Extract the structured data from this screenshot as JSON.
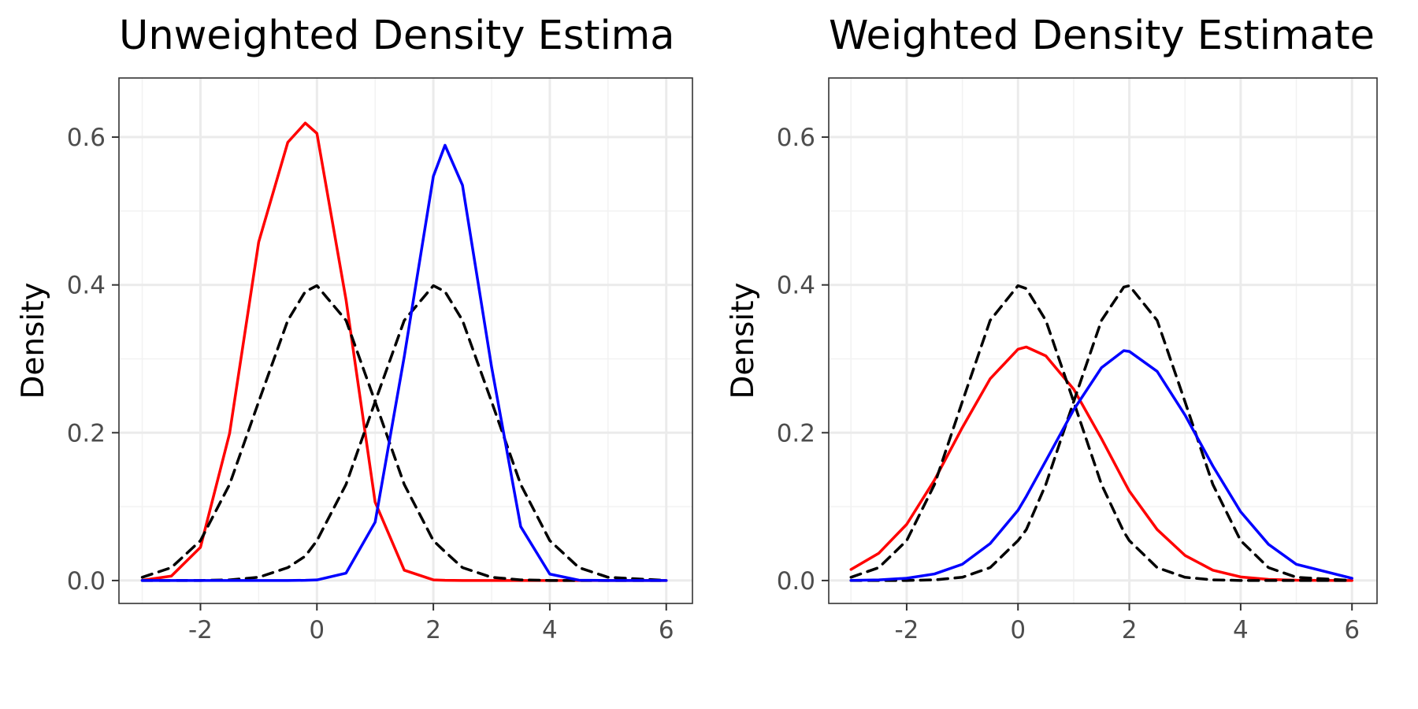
{
  "chart_data": [
    {
      "type": "line",
      "title": "Unweighted Density Estima",
      "xlabel": "",
      "ylabel": "Density",
      "xlim": [
        -3.4,
        6.45
      ],
      "ylim": [
        -0.031,
        0.68
      ],
      "x_ticks": [
        -2,
        0,
        2,
        4,
        6
      ],
      "x_tick_labels": [
        "-2",
        "0",
        "2",
        "4",
        "6"
      ],
      "y_ticks": [
        0.0,
        0.2,
        0.4,
        0.6
      ],
      "y_tick_labels": [
        "0.0",
        "0.2",
        "0.4",
        "0.6"
      ],
      "grid": true,
      "legend": "none",
      "x": [
        -3,
        -2.5,
        -2,
        -1.5,
        -1,
        -0.5,
        -0.2,
        0,
        0.5,
        1,
        1.5,
        2,
        2.2,
        2.5,
        3,
        3.5,
        4,
        4.5,
        5,
        6
      ],
      "series": [
        {
          "color": "#ff0000",
          "style": "solid",
          "values": [
            0.0003,
            0.006,
            0.045,
            0.199,
            0.458,
            0.593,
            0.619,
            0.605,
            0.38,
            0.106,
            0.014,
            0.0009,
            0.0003,
            0.0001,
            0,
            0,
            0,
            0,
            0,
            0
          ]
        },
        {
          "color": "#000000",
          "style": "dashed",
          "values": [
            0.0044,
            0.0175,
            0.054,
            0.13,
            0.242,
            0.352,
            0.391,
            0.399,
            0.352,
            0.242,
            0.13,
            0.054,
            0.039,
            0.0175,
            0.0044,
            0.0009,
            0.0001,
            0,
            0,
            0
          ]
        },
        {
          "color": "#000000",
          "style": "dashed",
          "values": [
            0,
            0,
            0.0001,
            0.0009,
            0.0044,
            0.0175,
            0.033,
            0.054,
            0.13,
            0.242,
            0.352,
            0.399,
            0.391,
            0.352,
            0.242,
            0.13,
            0.054,
            0.0175,
            0.0044,
            0.0001
          ]
        },
        {
          "color": "#0000ff",
          "style": "solid",
          "values": [
            0,
            0,
            0,
            0,
            0,
            0.0001,
            0.0003,
            0.0008,
            0.01,
            0.079,
            0.303,
            0.547,
            0.589,
            0.535,
            0.289,
            0.073,
            0.0087,
            0.0005,
            0,
            0
          ]
        }
      ]
    },
    {
      "type": "line",
      "title": "Weighted Density Estimate",
      "xlabel": "",
      "ylabel": "Density",
      "xlim": [
        -3.4,
        6.45
      ],
      "ylim": [
        -0.031,
        0.68
      ],
      "x_ticks": [
        -2,
        0,
        2,
        4,
        6
      ],
      "x_tick_labels": [
        "-2",
        "0",
        "2",
        "4",
        "6"
      ],
      "y_ticks": [
        0.0,
        0.2,
        0.4,
        0.6
      ],
      "y_tick_labels": [
        "0.0",
        "0.2",
        "0.4",
        "0.6"
      ],
      "grid": true,
      "legend": "none",
      "x": [
        -3,
        -2.5,
        -2,
        -1.5,
        -1,
        -0.5,
        0,
        0.15,
        0.5,
        1,
        1.5,
        1.9,
        2,
        2.5,
        3,
        3.5,
        4,
        4.5,
        5,
        6
      ],
      "series": [
        {
          "color": "#ff0000",
          "style": "solid",
          "values": [
            0.015,
            0.037,
            0.076,
            0.136,
            0.207,
            0.273,
            0.313,
            0.316,
            0.304,
            0.259,
            0.192,
            0.135,
            0.121,
            0.069,
            0.034,
            0.014,
            0.0049,
            0.0015,
            0.0004,
            0
          ]
        },
        {
          "color": "#000000",
          "style": "dashed",
          "values": [
            0.0044,
            0.0175,
            0.054,
            0.13,
            0.242,
            0.352,
            0.399,
            0.395,
            0.352,
            0.242,
            0.13,
            0.066,
            0.054,
            0.0175,
            0.0044,
            0.0009,
            0.0001,
            0,
            0,
            0
          ]
        },
        {
          "color": "#000000",
          "style": "dashed",
          "values": [
            0,
            0,
            0.0001,
            0.0009,
            0.0044,
            0.0175,
            0.054,
            0.069,
            0.13,
            0.242,
            0.352,
            0.397,
            0.399,
            0.352,
            0.242,
            0.13,
            0.054,
            0.0175,
            0.0044,
            0.0001
          ]
        },
        {
          "color": "#0000ff",
          "style": "solid",
          "values": [
            0.0002,
            0.0009,
            0.0031,
            0.0089,
            0.022,
            0.05,
            0.095,
            0.114,
            0.162,
            0.231,
            0.288,
            0.311,
            0.31,
            0.283,
            0.224,
            0.155,
            0.093,
            0.049,
            0.022,
            0.003
          ]
        }
      ]
    }
  ]
}
